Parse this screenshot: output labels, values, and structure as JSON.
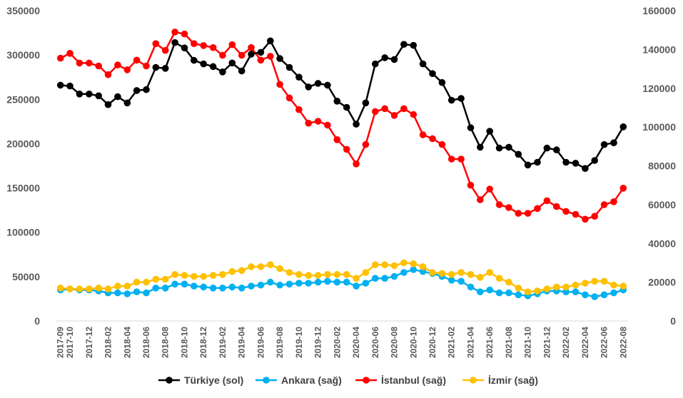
{
  "chart_data": {
    "type": "line",
    "title": "",
    "xlabel": "",
    "ylabel_left": "",
    "ylabel_right": "",
    "legend_position": "bottom",
    "grid": false,
    "y_left": {
      "min": 0,
      "max": 350000,
      "ticks": [
        "0",
        "50000",
        "100000",
        "150000",
        "200000",
        "250000",
        "300000",
        "350000"
      ]
    },
    "y_right": {
      "min": 0,
      "max": 160000,
      "ticks": [
        "0",
        "20000",
        "40000",
        "60000",
        "80000",
        "100000",
        "120000",
        "140000",
        "160000"
      ]
    },
    "categories": [
      "2017-09",
      "2017-10",
      "2017-11",
      "2017-12",
      "2018-01",
      "2018-02",
      "2018-03",
      "2018-04",
      "2018-05",
      "2018-06",
      "2018-07",
      "2018-08",
      "2018-09",
      "2018-10",
      "2018-11",
      "2018-12",
      "2019-01",
      "2019-02",
      "2019-03",
      "2019-04",
      "2019-05",
      "2019-06",
      "2019-07",
      "2019-08",
      "2019-09",
      "2019-10",
      "2019-11",
      "2019-12",
      "2020-01",
      "2020-02",
      "2020-03",
      "2020-04",
      "2020-05",
      "2020-06",
      "2020-07",
      "2020-08",
      "2020-09",
      "2020-10",
      "2020-11",
      "2020-12",
      "2021-01",
      "2021-02",
      "2021-03",
      "2021-04",
      "2021-05",
      "2021-06",
      "2021-07",
      "2021-08",
      "2021-09",
      "2021-10",
      "2021-11",
      "2021-12",
      "2022-01",
      "2022-02",
      "2022-03",
      "2022-04",
      "2022-05",
      "2022-06",
      "2022-07",
      "2022-08"
    ],
    "x_tick_labels": [
      "2017-09",
      "2017-10",
      "2017-12",
      "2018-02",
      "2018-04",
      "2018-06",
      "2018-08",
      "2018-10",
      "2018-12",
      "2019-02",
      "2019-04",
      "2019-06",
      "2019-08",
      "2019-10",
      "2019-12",
      "2020-02",
      "2020-04",
      "2020-06",
      "2020-08",
      "2020-10",
      "2020-12",
      "2021-02",
      "2021-04",
      "2021-06",
      "2021-08",
      "2021-10",
      "2021-12",
      "2022-02",
      "2022-04",
      "2022-06",
      "2022-08"
    ],
    "series": [
      {
        "name": "Türkiye (sol)",
        "axis": "left",
        "color": "#000000",
        "values": [
          266000,
          265000,
          256000,
          256000,
          254000,
          244000,
          253000,
          246000,
          260000,
          261000,
          286000,
          285000,
          314000,
          308000,
          294000,
          290000,
          287000,
          281000,
          291000,
          282000,
          301000,
          303000,
          316000,
          296000,
          286000,
          275000,
          264000,
          268000,
          266000,
          248000,
          241000,
          222000,
          246000,
          290000,
          297000,
          295000,
          312000,
          311000,
          290000,
          279000,
          269000,
          249000,
          251000,
          218000,
          196000,
          214000,
          195000,
          196000,
          188000,
          176000,
          179000,
          195000,
          193000,
          179000,
          178000,
          172000,
          181000,
          199000,
          201000,
          219000
        ]
      },
      {
        "name": "Ankara (sağ)",
        "axis": "right",
        "color": "#00b0f0",
        "values": [
          16000,
          16500,
          16000,
          16000,
          15500,
          14500,
          14500,
          14000,
          15000,
          14500,
          17000,
          17000,
          19000,
          19000,
          18000,
          17500,
          17000,
          17000,
          17500,
          17000,
          18000,
          18500,
          20000,
          18500,
          19000,
          19500,
          19500,
          20000,
          20500,
          20000,
          20000,
          18000,
          19500,
          22000,
          22000,
          23000,
          25000,
          26500,
          25500,
          24500,
          23000,
          21000,
          20500,
          17500,
          15000,
          16000,
          14500,
          14500,
          13500,
          13000,
          14000,
          15500,
          15500,
          15000,
          15000,
          13500,
          12500,
          13500,
          14500,
          16000
        ]
      },
      {
        "name": "İstanbul (sağ)",
        "axis": "right",
        "color": "#ff0000",
        "values": [
          135500,
          138000,
          133000,
          133000,
          131500,
          127000,
          132000,
          129500,
          134500,
          131500,
          143000,
          139500,
          149000,
          148000,
          143000,
          142000,
          141000,
          137000,
          142500,
          137000,
          141000,
          134500,
          136500,
          122000,
          115000,
          109000,
          102000,
          103000,
          101000,
          93500,
          88500,
          81000,
          91000,
          108000,
          109500,
          106000,
          109500,
          106500,
          96000,
          94000,
          91000,
          83500,
          83500,
          70000,
          62500,
          68000,
          60000,
          58500,
          55500,
          55500,
          58000,
          62000,
          59000,
          56500,
          55000,
          52500,
          54000,
          60000,
          61500,
          68500
        ]
      },
      {
        "name": "İzmir (sağ)",
        "axis": "right",
        "color": "#ffc000",
        "values": [
          17000,
          16500,
          16500,
          16500,
          17000,
          16500,
          18000,
          18000,
          20000,
          20000,
          21500,
          21500,
          24000,
          23500,
          23000,
          23000,
          23500,
          24000,
          25500,
          26000,
          28000,
          28000,
          29000,
          27000,
          25000,
          24000,
          23500,
          23500,
          24000,
          24000,
          24000,
          22000,
          25000,
          29000,
          29000,
          28500,
          30000,
          29500,
          28000,
          25000,
          24500,
          24000,
          25000,
          24000,
          22500,
          25000,
          22000,
          20000,
          17000,
          15000,
          15500,
          16500,
          17500,
          17500,
          18500,
          19500,
          20500,
          20500,
          18500,
          18000
        ]
      }
    ]
  }
}
